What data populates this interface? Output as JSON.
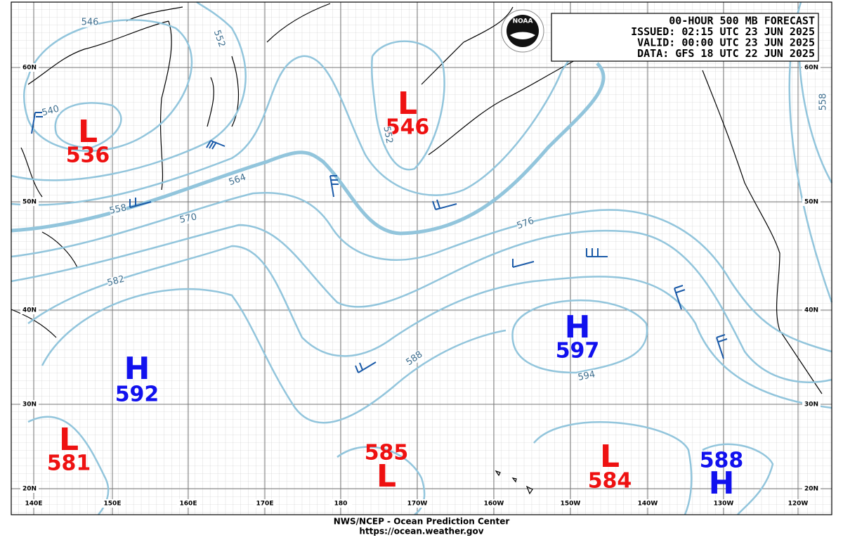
{
  "header": {
    "lines": [
      "00-HOUR 500 MB FORECAST",
      "ISSUED: 02:15 UTC 23 JUN 2025",
      "VALID:  00:00 UTC 23 JUN 2025",
      "DATA:  GFS 18 UTC 22 JUN 2025"
    ],
    "logo": "NOAA"
  },
  "systems": [
    {
      "letter": "L",
      "value": 536
    },
    {
      "letter": "L",
      "value": 546
    },
    {
      "letter": "H",
      "value": 597
    },
    {
      "letter": "H",
      "value": 592
    },
    {
      "letter": "L",
      "value": 581
    },
    {
      "letter": "L",
      "value": 585
    },
    {
      "letter": "L",
      "value": 584
    },
    {
      "letter": "H",
      "value": 588
    }
  ],
  "contour_labels": [
    546,
    552,
    540,
    558,
    564,
    570,
    576,
    582,
    588,
    594,
    558,
    552
  ],
  "latitudes": [
    "60N",
    "50N",
    "40N",
    "30N",
    "20N"
  ],
  "longitudes": [
    "140E",
    "150E",
    "160E",
    "170E",
    "180",
    "170W",
    "160W",
    "150W",
    "140W",
    "130W",
    "120W"
  ],
  "footer": [
    "NWS/NCEP - Ocean Prediction Center",
    "https://ocean.weather.gov"
  ]
}
